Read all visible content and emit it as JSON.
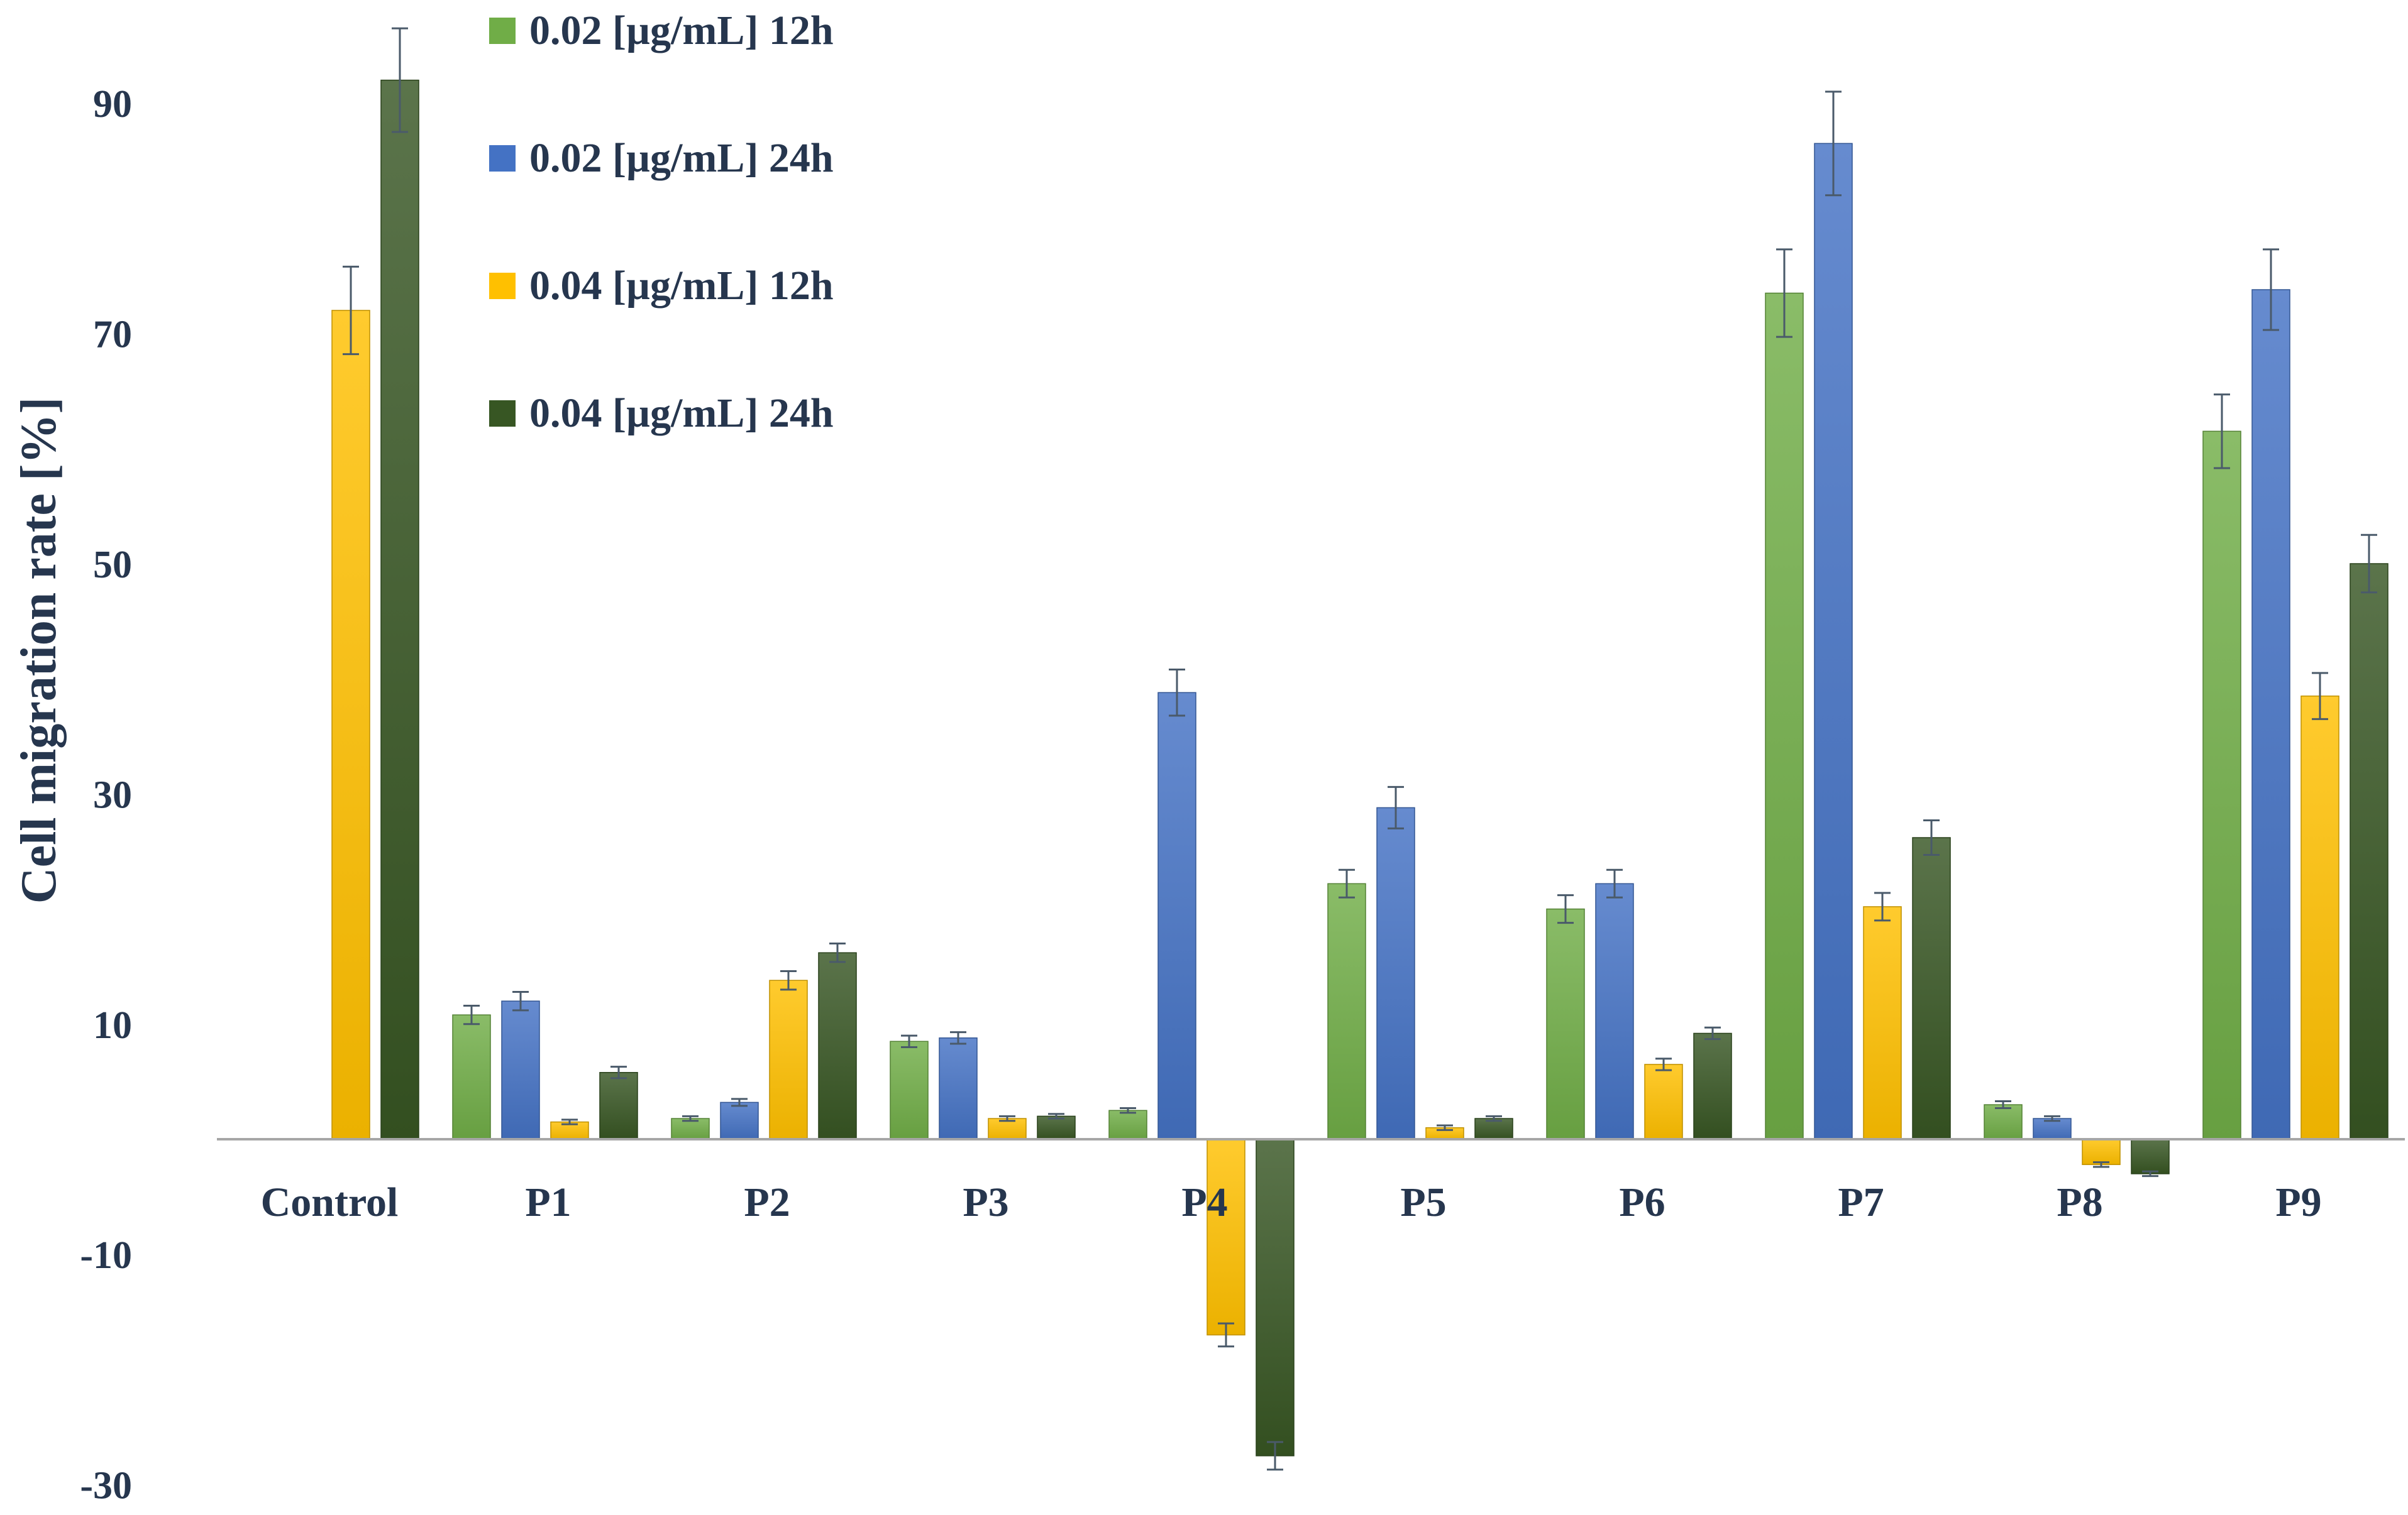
{
  "chart_data": {
    "type": "bar",
    "title": "",
    "xlabel": "",
    "ylabel": "Cell migration rate [%]",
    "ylim": [
      -30,
      97
    ],
    "yticks": [
      -30,
      -10,
      10,
      30,
      50,
      70,
      90
    ],
    "grid": false,
    "legend_position": "top-left",
    "categories": [
      "Control",
      "P1",
      "P2",
      "P3",
      "P4",
      "P5",
      "P6",
      "P7",
      "P8",
      "P9"
    ],
    "series": [
      {
        "name": "0.02 [µg/mL] 12h",
        "color": "#70ad47",
        "values": [
          null,
          10.8,
          1.8,
          8.5,
          2.5,
          22.2,
          20.0,
          73.5,
          3.0,
          61.5
        ],
        "errors": [
          null,
          0.8,
          0.2,
          0.5,
          0.2,
          1.2,
          1.2,
          3.8,
          0.3,
          3.2
        ]
      },
      {
        "name": "0.02 [µg/mL] 24h",
        "color": "#4472c4",
        "values": [
          null,
          12.0,
          3.2,
          8.8,
          38.8,
          28.8,
          22.2,
          86.5,
          1.8,
          73.8
        ],
        "errors": [
          null,
          0.8,
          0.3,
          0.5,
          2.0,
          1.8,
          1.2,
          4.5,
          0.2,
          3.5
        ]
      },
      {
        "name": "0.04 [µg/mL] 12h",
        "color": "#ffc000",
        "values": [
          72.0,
          1.5,
          13.8,
          1.8,
          -17.0,
          1.0,
          6.5,
          20.2,
          -2.2,
          38.5
        ],
        "errors": [
          3.8,
          0.2,
          0.8,
          0.2,
          1.0,
          0.2,
          0.5,
          1.2,
          0.2,
          2.0
        ]
      },
      {
        "name": "0.04 [µg/mL] 24h",
        "color": "#375623",
        "values": [
          92.0,
          5.8,
          16.2,
          2.0,
          -27.5,
          1.8,
          9.2,
          26.2,
          -3.0,
          50.0
        ],
        "errors": [
          4.5,
          0.5,
          0.8,
          0.2,
          1.2,
          0.2,
          0.5,
          1.5,
          0.2,
          2.5
        ]
      }
    ]
  }
}
